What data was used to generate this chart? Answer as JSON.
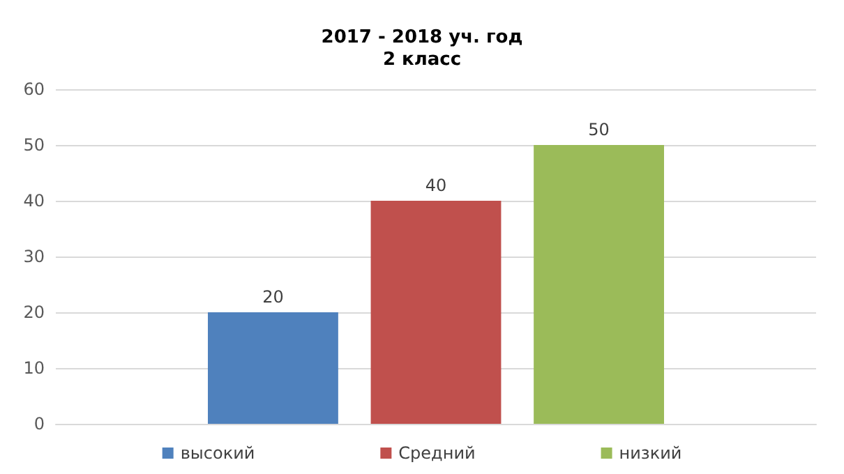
{
  "chart_data": {
    "type": "bar",
    "title": "2017 - 2018 уч. год\n2 класс",
    "categories": [
      null
    ],
    "series": [
      {
        "name": "высокий",
        "color": "#4f81bd",
        "values": [
          20
        ]
      },
      {
        "name": "Средний",
        "color": "#c0504d",
        "values": [
          40
        ]
      },
      {
        "name": "низкий",
        "color": "#9bbb59",
        "values": [
          50
        ]
      }
    ],
    "ylim": [
      0,
      60
    ],
    "yticks": [
      0,
      10,
      20,
      30,
      40,
      50,
      60
    ],
    "grid": "y",
    "legend": "bottom",
    "data_labels": true
  }
}
